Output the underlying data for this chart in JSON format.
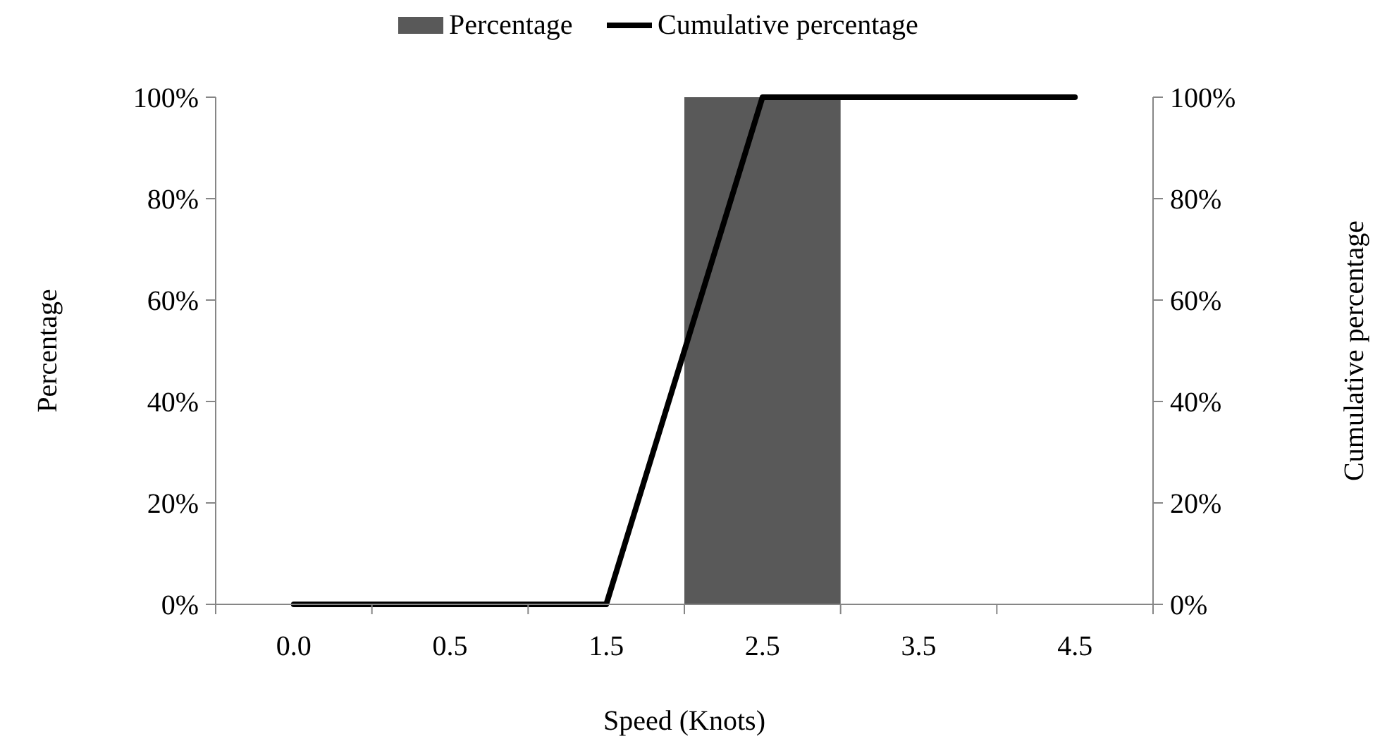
{
  "chart_data": {
    "type": "bar",
    "xlabel": "Speed (Knots)",
    "ylabel": "Percentage",
    "y2label": "Cumulative percentage",
    "categories": [
      "0.0",
      "0.5",
      "1.5",
      "2.5",
      "3.5",
      "4.5"
    ],
    "series": [
      {
        "name": "Percentage",
        "color": "#595959",
        "values": [
          0,
          0,
          0,
          100,
          0,
          0
        ]
      },
      {
        "name": "Cumulative percentage",
        "type": "line",
        "axis": "y2",
        "color": "#000000",
        "values": [
          0,
          0,
          0,
          100,
          100,
          100
        ]
      }
    ],
    "ylim": [
      0,
      100
    ],
    "yticks": [
      {
        "value": 0,
        "label": "0%"
      },
      {
        "value": 20,
        "label": "20%"
      },
      {
        "value": 40,
        "label": "40%"
      },
      {
        "value": 60,
        "label": "60%"
      },
      {
        "value": 80,
        "label": "80%"
      },
      {
        "value": 100,
        "label": "100%"
      }
    ],
    "y2lim": [
      0,
      100
    ],
    "y2ticks": [
      {
        "value": 0,
        "label": "0%"
      },
      {
        "value": 20,
        "label": "20%"
      },
      {
        "value": 40,
        "label": "40%"
      },
      {
        "value": 60,
        "label": "60%"
      },
      {
        "value": 80,
        "label": "80%"
      },
      {
        "value": 100,
        "label": "100%"
      }
    ],
    "legend": "top",
    "grid": false,
    "marker": "none",
    "line_style": "solid"
  }
}
